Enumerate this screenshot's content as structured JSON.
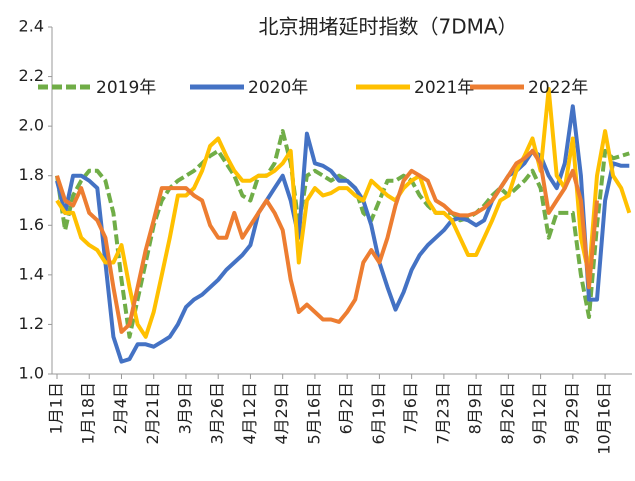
{
  "chart_data": {
    "type": "line",
    "title": "北京拥堵延时指数（7DMA）",
    "categories": [
      "1月1日",
      null,
      null,
      null,
      "1月18日",
      null,
      null,
      null,
      "2月4日",
      null,
      null,
      null,
      "2月21日",
      null,
      null,
      null,
      "3月9日",
      null,
      null,
      null,
      "3月26日",
      null,
      null,
      null,
      "4月12日",
      null,
      null,
      null,
      "4月29日",
      null,
      null,
      null,
      "5月16日",
      null,
      null,
      null,
      "6月2日",
      null,
      null,
      null,
      "6月19日",
      null,
      null,
      null,
      "7月6日",
      null,
      null,
      null,
      "7月23日",
      null,
      null,
      null,
      "8月9日",
      null,
      null,
      null,
      "8月26日",
      null,
      null,
      null,
      "9月12日",
      null,
      null,
      null,
      "9月29日",
      null,
      null,
      null,
      "10月16日",
      null,
      null,
      null
    ],
    "series": [
      {
        "name": "2019年",
        "color": "#70ad47",
        "dashed": true,
        "values": [
          1.8,
          1.58,
          1.72,
          1.78,
          1.82,
          1.82,
          1.78,
          1.65,
          1.38,
          1.15,
          1.3,
          1.45,
          1.6,
          1.7,
          1.75,
          1.78,
          1.8,
          1.82,
          1.85,
          1.88,
          1.9,
          1.85,
          1.8,
          1.72,
          1.7,
          1.8,
          1.8,
          1.85,
          1.98,
          1.85,
          1.6,
          1.8,
          1.82,
          1.8,
          1.78,
          1.8,
          1.78,
          1.75,
          1.65,
          1.62,
          1.7,
          1.78,
          1.78,
          1.8,
          1.78,
          1.72,
          1.68,
          1.65,
          1.65,
          1.65,
          1.62,
          1.63,
          1.65,
          1.68,
          1.72,
          1.75,
          1.72,
          1.75,
          1.78,
          1.82,
          1.75,
          1.55,
          1.65,
          1.65,
          1.65,
          1.4,
          1.23,
          1.6,
          1.9,
          1.87,
          1.88,
          1.89
        ]
      },
      {
        "name": "2020年",
        "color": "#4472c4",
        "values": [
          1.78,
          1.65,
          1.8,
          1.8,
          1.78,
          1.75,
          1.45,
          1.15,
          1.05,
          1.06,
          1.12,
          1.12,
          1.11,
          1.13,
          1.15,
          1.2,
          1.27,
          1.3,
          1.32,
          1.35,
          1.38,
          1.42,
          1.45,
          1.48,
          1.52,
          1.65,
          1.7,
          1.75,
          1.8,
          1.7,
          1.55,
          1.97,
          1.85,
          1.84,
          1.82,
          1.78,
          1.78,
          1.75,
          1.7,
          1.6,
          1.45,
          1.35,
          1.26,
          1.33,
          1.42,
          1.48,
          1.52,
          1.55,
          1.58,
          1.62,
          1.63,
          1.62,
          1.6,
          1.62,
          1.7,
          1.75,
          1.8,
          1.82,
          1.85,
          1.9,
          1.88,
          1.8,
          1.75,
          1.85,
          2.08,
          1.8,
          1.3,
          1.3,
          1.7,
          1.85,
          1.84,
          1.84
        ]
      },
      {
        "name": "2021年",
        "color": "#ffc000",
        "values": [
          1.7,
          1.65,
          1.65,
          1.55,
          1.52,
          1.5,
          1.45,
          1.45,
          1.52,
          1.35,
          1.2,
          1.15,
          1.25,
          1.4,
          1.55,
          1.72,
          1.72,
          1.75,
          1.82,
          1.92,
          1.95,
          1.88,
          1.82,
          1.78,
          1.78,
          1.8,
          1.8,
          1.82,
          1.85,
          1.9,
          1.45,
          1.7,
          1.75,
          1.72,
          1.73,
          1.75,
          1.75,
          1.72,
          1.7,
          1.78,
          1.75,
          1.72,
          1.7,
          1.75,
          1.78,
          1.8,
          1.7,
          1.65,
          1.65,
          1.62,
          1.55,
          1.48,
          1.48,
          1.55,
          1.62,
          1.7,
          1.72,
          1.82,
          1.88,
          1.95,
          1.82,
          2.15,
          1.8,
          1.75,
          1.95,
          1.55,
          1.4,
          1.8,
          1.98,
          1.8,
          1.75,
          1.65
        ]
      },
      {
        "name": "2022年",
        "color": "#ed7d31",
        "values": [
          1.8,
          1.7,
          1.68,
          1.75,
          1.65,
          1.62,
          1.55,
          1.35,
          1.17,
          1.2,
          1.35,
          1.5,
          1.62,
          1.75,
          1.75,
          1.75,
          1.75,
          1.72,
          1.7,
          1.6,
          1.55,
          1.55,
          1.65,
          1.55,
          1.6,
          1.65,
          1.7,
          1.65,
          1.58,
          1.38,
          1.25,
          1.28,
          1.25,
          1.22,
          1.22,
          1.21,
          1.25,
          1.3,
          1.45,
          1.5,
          1.45,
          1.55,
          1.68,
          1.78,
          1.82,
          1.8,
          1.78,
          1.7,
          1.68,
          1.65,
          1.64,
          1.64,
          1.65,
          1.67,
          1.7,
          1.75,
          1.8,
          1.85,
          1.87,
          1.9,
          1.85,
          1.65,
          1.7,
          1.75,
          1.82,
          1.7,
          1.35,
          1.7,
          null,
          null,
          null,
          null
        ]
      }
    ],
    "ylim": [
      1.0,
      2.4
    ],
    "yticks": [
      {
        "value": 1.0,
        "label": "1.0"
      },
      1.2,
      1.4,
      1.6,
      1.8,
      {
        "value": 2.0,
        "label": "2.0"
      },
      2.2,
      2.4
    ],
    "grid": false,
    "legend": "top"
  }
}
